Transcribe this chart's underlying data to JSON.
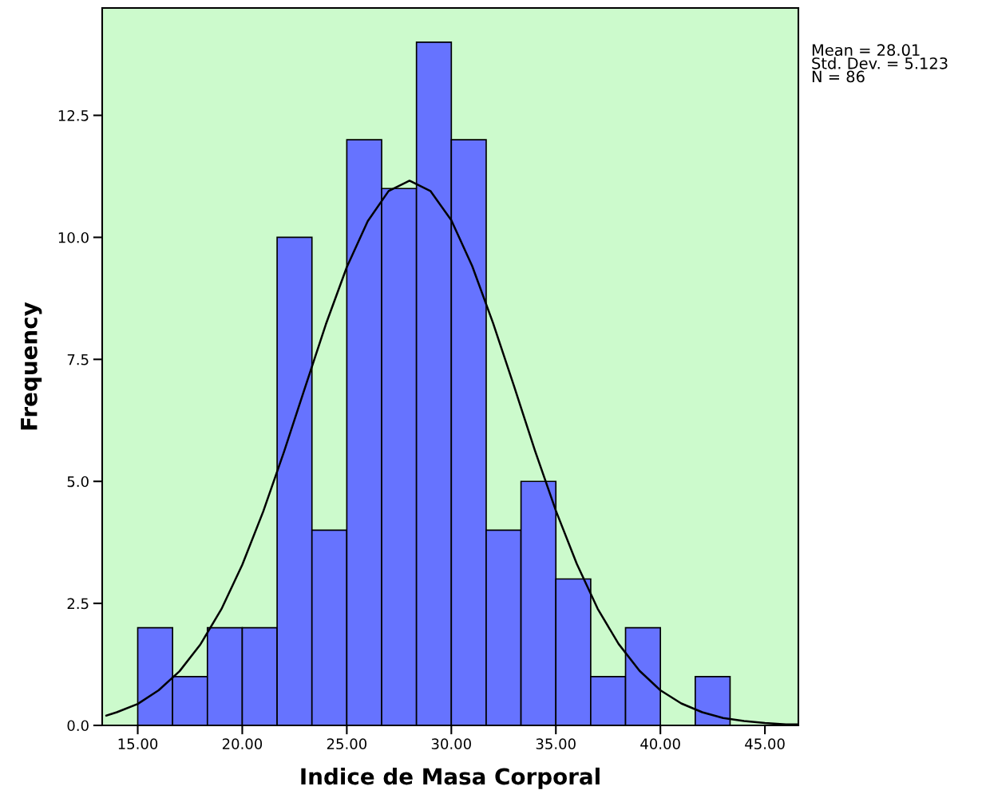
{
  "chart_data": {
    "type": "histogram",
    "xlabel": "Indice de Masa Corporal",
    "ylabel": "Frequency",
    "bins": [
      15,
      16.667,
      18.333,
      20,
      21.667,
      23.333,
      25,
      26.667,
      28.333,
      30,
      31.667,
      33.333,
      35,
      36.667,
      38.333,
      40,
      41.667,
      43.333
    ],
    "values": [
      2,
      1,
      2,
      2,
      10,
      4,
      12,
      11,
      14,
      12,
      4,
      5,
      3,
      1,
      2,
      0,
      1
    ],
    "color": "#6673ff",
    "series": [
      {
        "type": "line",
        "color": "#000000",
        "x": [
          13.5,
          14,
          15,
          16,
          17,
          18,
          19,
          20,
          21,
          22,
          23,
          24,
          25,
          26,
          27,
          28,
          29,
          30,
          31,
          32,
          33,
          34,
          35,
          36,
          37,
          38,
          39,
          40,
          41,
          42,
          43,
          44,
          45,
          46,
          46.6
        ],
        "values": [
          0.2,
          0.27,
          0.44,
          0.72,
          1.11,
          1.66,
          2.38,
          3.29,
          4.38,
          5.61,
          6.92,
          8.22,
          9.39,
          10.33,
          10.95,
          11.16,
          10.95,
          10.35,
          9.41,
          8.24,
          6.95,
          5.63,
          4.4,
          3.31,
          2.39,
          1.67,
          1.12,
          0.72,
          0.45,
          0.27,
          0.15,
          0.09,
          0.05,
          0.02,
          0.02
        ]
      }
    ],
    "xlim": [
      13.3,
      46.6
    ],
    "ylim": [
      0,
      14.7
    ],
    "xticks": [
      {
        "value": 15,
        "label": "15.00"
      },
      {
        "value": 20,
        "label": "20.00"
      },
      {
        "value": 25,
        "label": "25.00"
      },
      {
        "value": 30,
        "label": "30.00"
      },
      {
        "value": 35,
        "label": "35.00"
      },
      {
        "value": 40,
        "label": "40.00"
      },
      {
        "value": 45,
        "label": "45.00"
      }
    ],
    "yticks": [
      {
        "value": 0,
        "label": "0.0"
      },
      {
        "value": 2.5,
        "label": "2.5"
      },
      {
        "value": 5,
        "label": "5.0"
      },
      {
        "value": 7.5,
        "label": "7.5"
      },
      {
        "value": 10,
        "label": "10.0"
      },
      {
        "value": 12.5,
        "label": "12.5"
      }
    ],
    "annotations": [
      "Mean = 28.01\nStd. Dev. = 5.123\nN = 86"
    ]
  }
}
